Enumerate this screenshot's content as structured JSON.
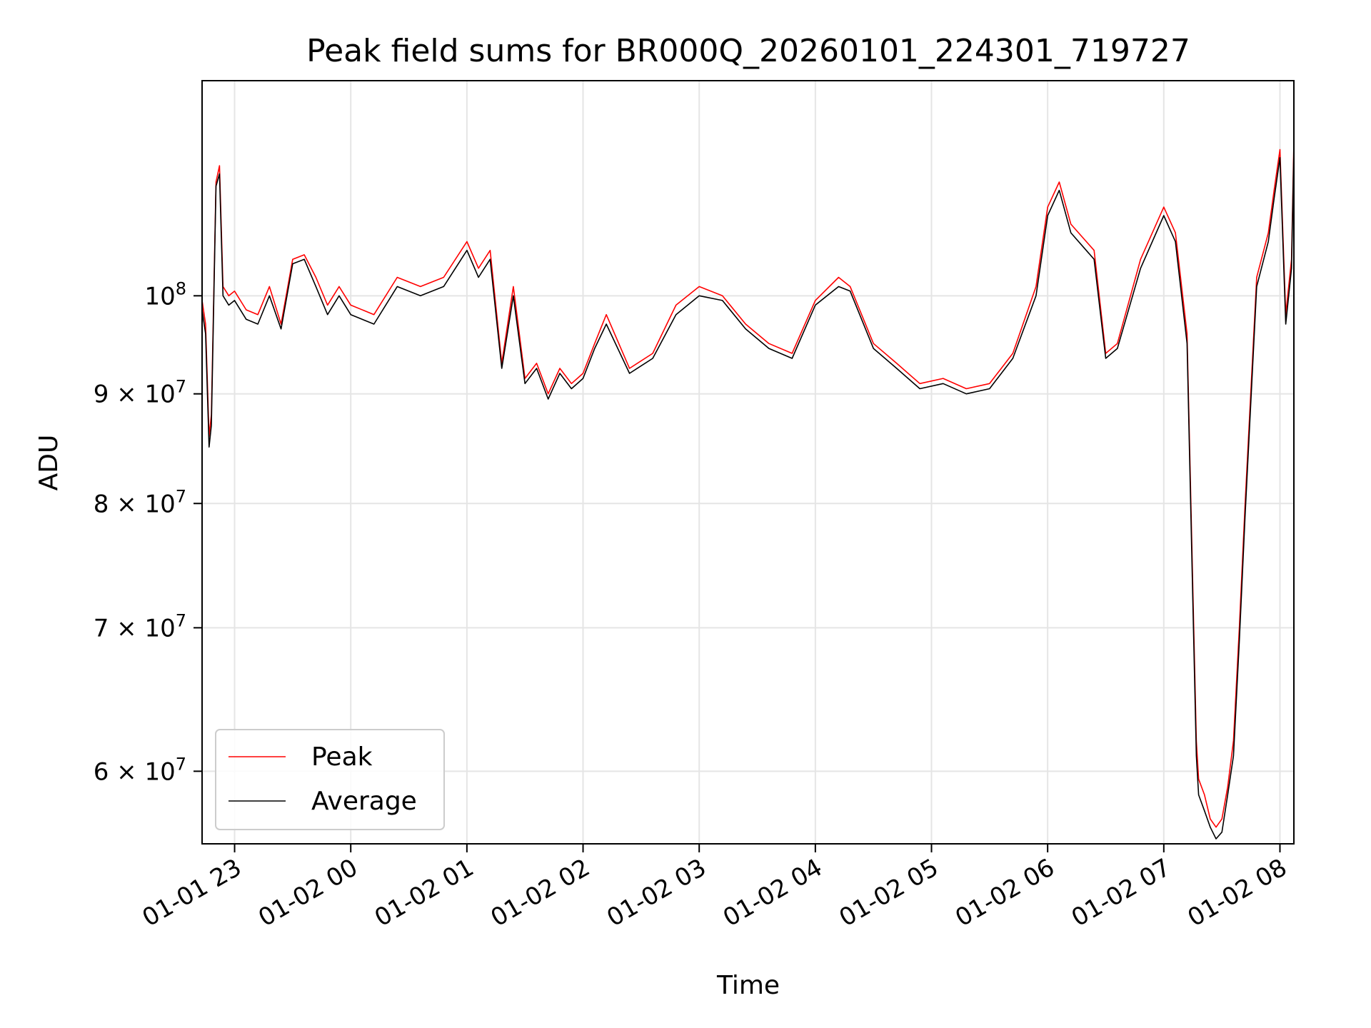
{
  "chart_data": {
    "type": "line",
    "title": "Peak field sums for BR000Q_20260101_224301_719727",
    "xlabel": "Time",
    "ylabel": "ADU",
    "yscale": "log",
    "xlim": [
      22.72,
      32.12
    ],
    "ylim": [
      55500000,
      126000000
    ],
    "x_ticks": [
      {
        "value": 23,
        "label": "01-01 23"
      },
      {
        "value": 24,
        "label": "01-02 00"
      },
      {
        "value": 25,
        "label": "01-02 01"
      },
      {
        "value": 26,
        "label": "01-02 02"
      },
      {
        "value": 27,
        "label": "01-02 03"
      },
      {
        "value": 28,
        "label": "01-02 04"
      },
      {
        "value": 29,
        "label": "01-02 05"
      },
      {
        "value": 30,
        "label": "01-02 06"
      },
      {
        "value": 31,
        "label": "01-02 07"
      },
      {
        "value": 32,
        "label": "01-02 08"
      }
    ],
    "y_ticks": [
      {
        "value": 60000000,
        "mantissa": "6",
        "exponent": "7"
      },
      {
        "value": 70000000,
        "mantissa": "7",
        "exponent": "7"
      },
      {
        "value": 80000000,
        "mantissa": "8",
        "exponent": "7"
      },
      {
        "value": 90000000,
        "mantissa": "9",
        "exponent": "7"
      },
      {
        "value": 100000000,
        "mantissa": "",
        "exponent": "8"
      }
    ],
    "grid": true,
    "legend": {
      "position": "lower-left",
      "entries": [
        "Peak",
        "Average"
      ]
    },
    "series": [
      {
        "name": "Peak",
        "color": "#ff0000",
        "x": [
          22.72,
          22.75,
          22.78,
          22.8,
          22.84,
          22.87,
          22.9,
          22.95,
          23.0,
          23.1,
          23.2,
          23.3,
          23.4,
          23.5,
          23.6,
          23.7,
          23.8,
          23.9,
          24.0,
          24.2,
          24.4,
          24.6,
          24.8,
          25.0,
          25.1,
          25.2,
          25.3,
          25.4,
          25.5,
          25.6,
          25.7,
          25.8,
          25.9,
          26.0,
          26.1,
          26.2,
          26.4,
          26.6,
          26.8,
          27.0,
          27.2,
          27.4,
          27.6,
          27.8,
          28.0,
          28.2,
          28.3,
          28.5,
          28.7,
          28.9,
          29.1,
          29.3,
          29.5,
          29.7,
          29.9,
          30.0,
          30.1,
          30.2,
          30.4,
          30.5,
          30.6,
          30.8,
          31.0,
          31.1,
          31.2,
          31.25,
          31.28,
          31.3,
          31.35,
          31.4,
          31.45,
          31.5,
          31.55,
          31.6,
          31.65,
          31.7,
          31.8,
          31.9,
          31.95,
          32.0,
          32.05,
          32.1,
          32.12
        ],
        "y": [
          99500000,
          97000000,
          86000000,
          88000000,
          113000000,
          115000000,
          101000000,
          100000000,
          100500000,
          98500000,
          98000000,
          101000000,
          97000000,
          104000000,
          104500000,
          102000000,
          99000000,
          101000000,
          99000000,
          98000000,
          102000000,
          101000000,
          102000000,
          106000000,
          103000000,
          105000000,
          93000000,
          101000000,
          91500000,
          93000000,
          90000000,
          92500000,
          91000000,
          92000000,
          95000000,
          98000000,
          92500000,
          94000000,
          99000000,
          101000000,
          100000000,
          97000000,
          95000000,
          94000000,
          99500000,
          102000000,
          101000000,
          95000000,
          93000000,
          91000000,
          91500000,
          90500000,
          91000000,
          94000000,
          101000000,
          110000000,
          113000000,
          108000000,
          105000000,
          94000000,
          95000000,
          104000000,
          110000000,
          107000000,
          96000000,
          73000000,
          62000000,
          59500000,
          58500000,
          57000000,
          56500000,
          57000000,
          59000000,
          62000000,
          70000000,
          80000000,
          102000000,
          107000000,
          112000000,
          117000000,
          98000000,
          104000000,
          118000000
        ]
      },
      {
        "name": "Average",
        "color": "#000000",
        "x": [
          22.72,
          22.75,
          22.78,
          22.8,
          22.84,
          22.87,
          22.9,
          22.95,
          23.0,
          23.1,
          23.2,
          23.3,
          23.4,
          23.5,
          23.6,
          23.7,
          23.8,
          23.9,
          24.0,
          24.2,
          24.4,
          24.6,
          24.8,
          25.0,
          25.1,
          25.2,
          25.3,
          25.4,
          25.5,
          25.6,
          25.7,
          25.8,
          25.9,
          26.0,
          26.1,
          26.2,
          26.4,
          26.6,
          26.8,
          27.0,
          27.2,
          27.4,
          27.6,
          27.8,
          28.0,
          28.2,
          28.3,
          28.5,
          28.7,
          28.9,
          29.1,
          29.3,
          29.5,
          29.7,
          29.9,
          30.0,
          30.1,
          30.2,
          30.4,
          30.5,
          30.6,
          30.8,
          31.0,
          31.1,
          31.2,
          31.25,
          31.28,
          31.3,
          31.35,
          31.4,
          31.45,
          31.5,
          31.55,
          31.6,
          31.65,
          31.7,
          31.8,
          31.9,
          31.95,
          32.0,
          32.05,
          32.1,
          32.12
        ],
        "y": [
          98500000,
          96000000,
          85000000,
          87000000,
          112500000,
          114000000,
          100000000,
          99000000,
          99500000,
          97500000,
          97000000,
          100000000,
          96500000,
          103500000,
          104000000,
          101000000,
          98000000,
          100000000,
          98000000,
          97000000,
          101000000,
          100000000,
          101000000,
          105000000,
          102000000,
          104000000,
          92500000,
          100000000,
          91000000,
          92500000,
          89500000,
          92000000,
          90500000,
          91500000,
          94500000,
          97000000,
          92000000,
          93500000,
          98000000,
          100000000,
          99500000,
          96500000,
          94500000,
          93500000,
          99000000,
          101000000,
          100500000,
          94500000,
          92500000,
          90500000,
          91000000,
          90000000,
          90500000,
          93500000,
          100000000,
          109000000,
          112000000,
          107000000,
          104000000,
          93500000,
          94500000,
          103000000,
          109000000,
          106000000,
          95000000,
          72000000,
          61000000,
          58500000,
          57500000,
          56500000,
          55800000,
          56200000,
          58500000,
          61000000,
          69000000,
          79000000,
          101000000,
          106000000,
          111000000,
          116000000,
          97000000,
          103000000,
          117000000
        ]
      }
    ]
  }
}
